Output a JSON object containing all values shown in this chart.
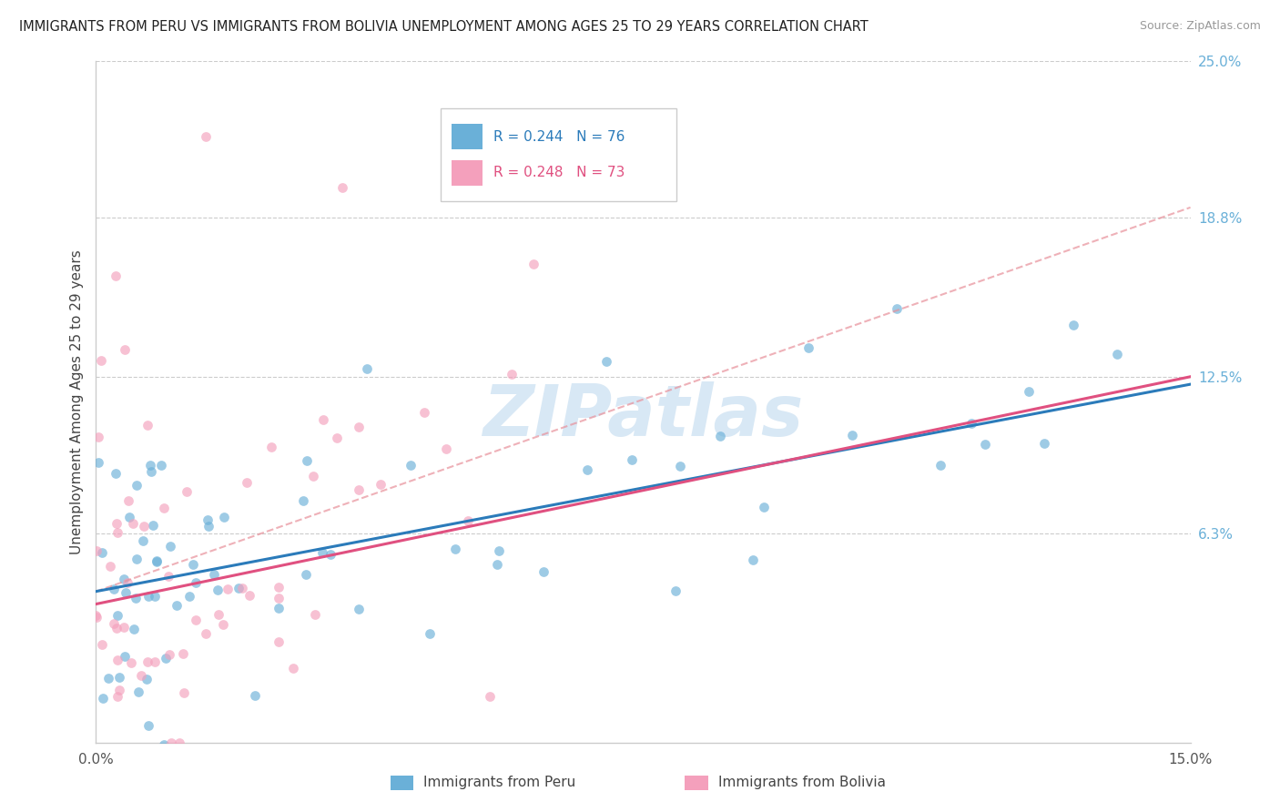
{
  "title": "IMMIGRANTS FROM PERU VS IMMIGRANTS FROM BOLIVIA UNEMPLOYMENT AMONG AGES 25 TO 29 YEARS CORRELATION CHART",
  "source": "Source: ZipAtlas.com",
  "ylabel": "Unemployment Among Ages 25 to 29 years",
  "xlim": [
    0.0,
    0.15
  ],
  "ylim": [
    -0.02,
    0.25
  ],
  "ytick_labels": [
    "6.3%",
    "12.5%",
    "18.8%",
    "25.0%"
  ],
  "ytick_values": [
    0.063,
    0.125,
    0.188,
    0.25
  ],
  "legend_label1": "Immigrants from Peru",
  "legend_label2": "Immigrants from Bolivia",
  "r1": 0.244,
  "n1": 76,
  "r2": 0.248,
  "n2": 73,
  "color_peru": "#6ab0d8",
  "color_bolivia": "#f4a0bc",
  "color_trendline_peru": "#2b7bba",
  "color_trendline_bolivia": "#e05080",
  "color_dashed": "#e8909a",
  "watermark": "ZIPatlas",
  "background_color": "#ffffff",
  "grid_color": "#cccccc",
  "right_axis_color": "#6ab0d8"
}
